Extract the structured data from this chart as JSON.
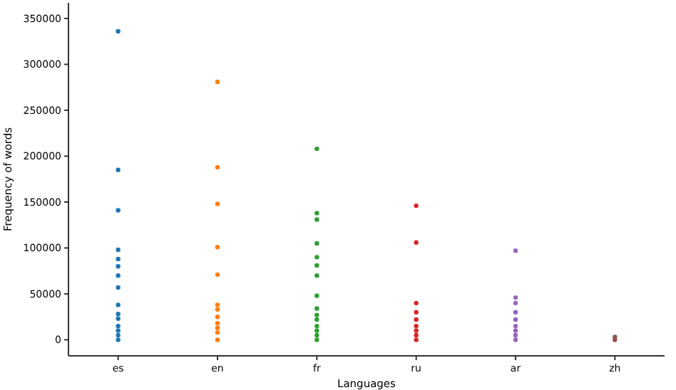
{
  "chart_data": {
    "type": "scatter",
    "xlabel": "Languages",
    "ylabel": "Frequency of words",
    "categories": [
      "es",
      "en",
      "fr",
      "ru",
      "ar",
      "zh"
    ],
    "ylim": [
      -17500,
      367000
    ],
    "yticks": [
      0,
      50000,
      100000,
      150000,
      200000,
      250000,
      300000,
      350000
    ],
    "grid": false,
    "marker": "circle",
    "series": [
      {
        "color": "#1f77b4",
        "x": [
          "es",
          "es",
          "es",
          "es",
          "es",
          "es",
          "es",
          "es",
          "es",
          "es",
          "es",
          "es",
          "es",
          "es",
          "es"
        ],
        "values": [
          336000,
          185000,
          141000,
          98000,
          88000,
          80000,
          70000,
          57000,
          38000,
          28000,
          23000,
          15000,
          10000,
          5000,
          0
        ]
      },
      {
        "color": "#ff7f0e",
        "x": [
          "en",
          "en",
          "en",
          "en",
          "en",
          "en",
          "en",
          "en",
          "en",
          "en",
          "en",
          "en"
        ],
        "values": [
          281000,
          188000,
          148000,
          101000,
          71000,
          38000,
          33000,
          25000,
          18000,
          13000,
          8000,
          0
        ]
      },
      {
        "color": "#2ca02c",
        "x": [
          "fr",
          "fr",
          "fr",
          "fr",
          "fr",
          "fr",
          "fr",
          "fr",
          "fr",
          "fr",
          "fr",
          "fr",
          "fr",
          "fr",
          "fr"
        ],
        "values": [
          208000,
          138000,
          131000,
          105000,
          90000,
          81000,
          70000,
          48000,
          34000,
          27000,
          22000,
          15000,
          10000,
          5000,
          0
        ]
      },
      {
        "color": "#d62728",
        "x": [
          "ru",
          "ru",
          "ru",
          "ru",
          "ru",
          "ru",
          "ru",
          "ru",
          "ru"
        ],
        "values": [
          146000,
          106000,
          40000,
          30000,
          22000,
          15000,
          10000,
          5000,
          0
        ]
      },
      {
        "color": "#9467bd",
        "x": [
          "ar",
          "ar",
          "ar",
          "ar",
          "ar",
          "ar",
          "ar",
          "ar",
          "ar"
        ],
        "values": [
          97000,
          46000,
          40000,
          30000,
          22000,
          15000,
          10000,
          5000,
          0
        ]
      },
      {
        "color": "#8c564b",
        "x": [
          "zh",
          "zh"
        ],
        "values": [
          3000,
          0
        ]
      }
    ]
  }
}
